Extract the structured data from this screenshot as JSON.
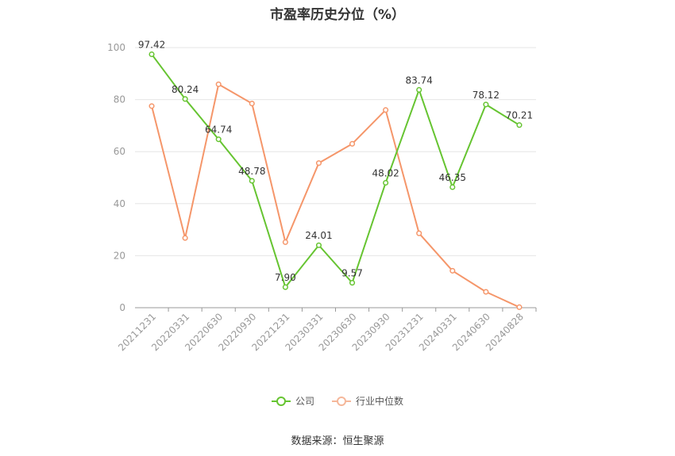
{
  "chart_data": {
    "type": "line",
    "title": "市盈率历史分位（%）",
    "categories": [
      "20211231",
      "20220331",
      "20220630",
      "20220930",
      "20221231",
      "20230331",
      "20230630",
      "20230930",
      "20231231",
      "20240331",
      "20240630",
      "20240828"
    ],
    "ylim": [
      0,
      100
    ],
    "yticks": [
      0,
      20,
      40,
      60,
      80,
      100
    ],
    "grid": true,
    "legend_position": "bottom",
    "series": [
      {
        "name": "公司",
        "color": "#66c431",
        "values": [
          97.42,
          80.24,
          64.74,
          48.78,
          7.9,
          24.01,
          9.57,
          48.02,
          83.74,
          46.35,
          78.12,
          70.21
        ],
        "labels": [
          "97.42",
          "80.24",
          "64.74",
          "48.78",
          "7.90",
          "24.01",
          "9.57",
          "48.02",
          "83.74",
          "46.35",
          "78.12",
          "70.21"
        ]
      },
      {
        "name": "行业中位数",
        "color": "#f5966a",
        "values": [
          77.5,
          26.8,
          85.9,
          78.5,
          25.2,
          55.6,
          63.0,
          76.0,
          28.6,
          14.2,
          6.1,
          0.2
        ]
      }
    ]
  },
  "source": "数据来源：恒生聚源"
}
